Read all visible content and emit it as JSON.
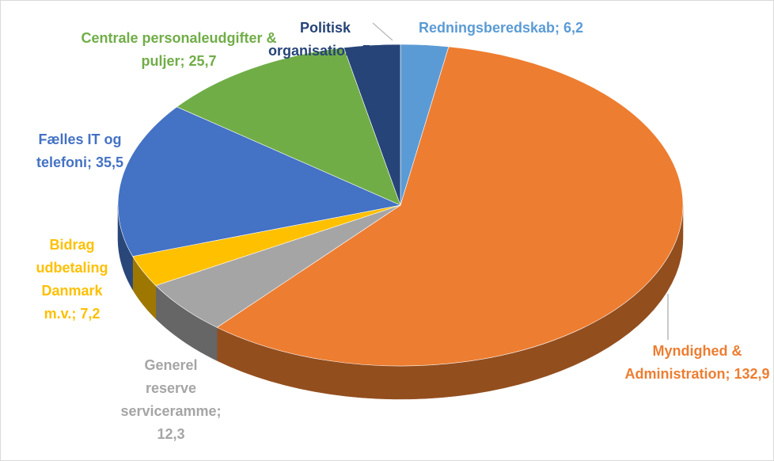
{
  "chart_data": {
    "type": "pie3d",
    "categories": [
      "Redningsberedskab",
      "Myndighed & Administration",
      "Generel reserve serviceramme",
      "Bidrag udbetaling Danmark m.v.",
      "Fælles IT og telefoni",
      "Centrale personaleudgifter & puljer",
      "Politisk organisation"
    ],
    "values": [
      6.2,
      132.9,
      12.3,
      7.2,
      35.5,
      25.7,
      7.3
    ],
    "value_labels": [
      "6,2",
      "132,9",
      "12,3",
      "7,2",
      "35,5",
      "25,7",
      "7,3"
    ],
    "label_separator": "; ",
    "colors": [
      "#5b9bd5",
      "#ed7d31",
      "#a5a5a5",
      "#ffc000",
      "#4472c4",
      "#70ad47",
      "#264478"
    ]
  }
}
